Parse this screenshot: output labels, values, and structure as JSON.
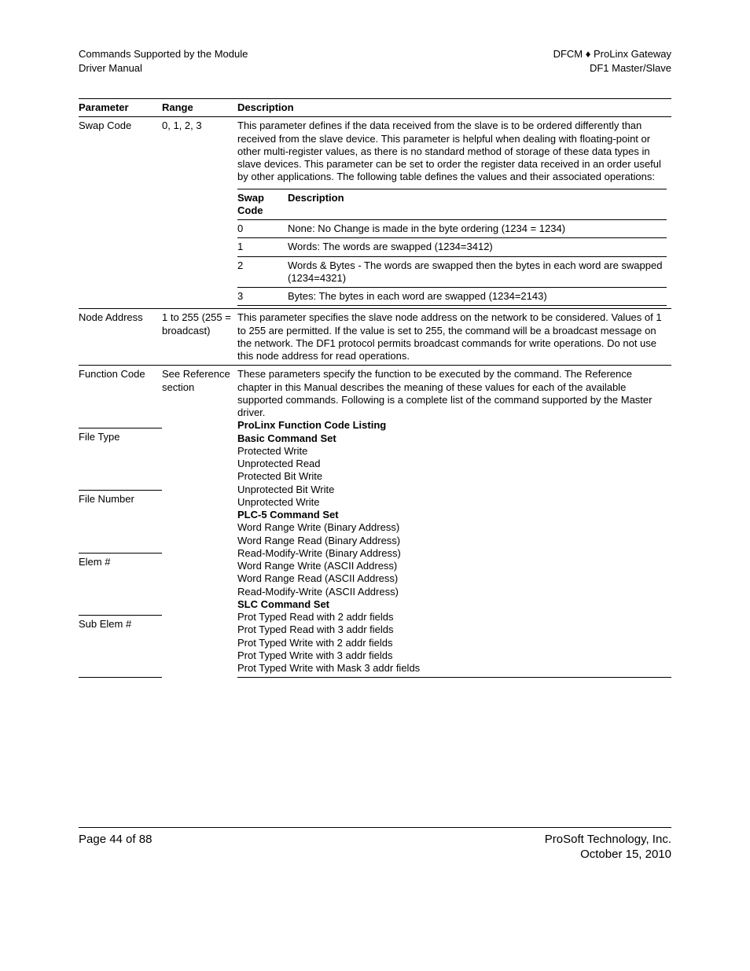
{
  "header": {
    "left_line1": "Commands Supported by the Module",
    "left_line2": "Driver Manual",
    "right_line1": "DFCM ♦ ProLinx Gateway",
    "right_line2": "DF1 Master/Slave"
  },
  "table": {
    "headers": {
      "param": "Parameter",
      "range": "Range",
      "desc": "Description"
    },
    "rows": [
      {
        "param": "Swap Code",
        "range": "0, 1, 2, 3",
        "desc_intro": "This parameter defines if the data received from the slave is to be ordered differently than received from the slave device. This parameter is helpful when dealing with floating-point or other multi-register values, as there is no standard method of storage of these data types in slave devices. This parameter can be set to order the register data received in an order useful by other applications. The following table defines the values and their associated operations:",
        "inner": {
          "headers": {
            "code": "Swap Code",
            "desc": "Description"
          },
          "rows": [
            {
              "code": "0",
              "desc": "None: No Change is made in the byte ordering (1234 = 1234)"
            },
            {
              "code": "1",
              "desc": "Words: The words are swapped (1234=3412)"
            },
            {
              "code": "2",
              "desc": "Words & Bytes - The words are swapped then the bytes in each word are swapped (1234=4321)"
            },
            {
              "code": "3",
              "desc": "Bytes: The bytes in each word are swapped (1234=2143)"
            }
          ]
        }
      },
      {
        "param": "Node Address",
        "range": "1 to 255 (255 = broadcast)",
        "desc": "This parameter specifies the slave node address on the network to be considered. Values of 1 to 255 are permitted. If the value is set to 255, the command will be a broadcast message on the network. The DF1 protocol permits broadcast commands for write operations. Do not use this node address for read operations."
      },
      {
        "param": "Function Code",
        "range": "See Reference section",
        "desc_lines": [
          {
            "t": "These parameters specify the function to be executed by the command. The Reference chapter in this Manual describes the meaning of these values for each of the available supported commands. Following is a complete list of the command supported by the Master driver."
          },
          {
            "t": "ProLinx Function Code Listing",
            "bold": true
          },
          {
            "t": "Basic Command Set",
            "bold": true
          },
          {
            "t": "Protected Write"
          },
          {
            "t": "Unprotected Read"
          },
          {
            "t": "Protected Bit Write"
          },
          {
            "t": "Unprotected Bit Write"
          },
          {
            "t": "Unprotected Write"
          },
          {
            "t": "PLC-5 Command Set",
            "bold": true
          },
          {
            "t": "Word Range Write (Binary Address)"
          },
          {
            "t": "Word Range Read (Binary Address)"
          },
          {
            "t": "Read-Modify-Write (Binary Address)"
          },
          {
            "t": "Word Range Write (ASCII Address)"
          },
          {
            "t": "Word Range Read (ASCII Address)"
          },
          {
            "t": "Read-Modify-Write (ASCII Address)"
          },
          {
            "t": "SLC Command Set",
            "bold": true
          },
          {
            "t": "Prot Typed Read with 2 addr fields"
          },
          {
            "t": "Prot Typed Read with 3 addr fields"
          },
          {
            "t": "Prot Typed Write with 2 addr fields"
          },
          {
            "t": "Prot Typed Write with 3 addr fields"
          },
          {
            "t": "Prot Typed Write with Mask 3 addr fields"
          }
        ]
      }
    ],
    "sub_params": [
      "File Type",
      "File Number",
      "Elem #",
      "Sub Elem #"
    ]
  },
  "footer": {
    "left": "Page 44 of 88",
    "right_line1": "ProSoft Technology, Inc.",
    "right_line2": "October 15, 2010"
  }
}
